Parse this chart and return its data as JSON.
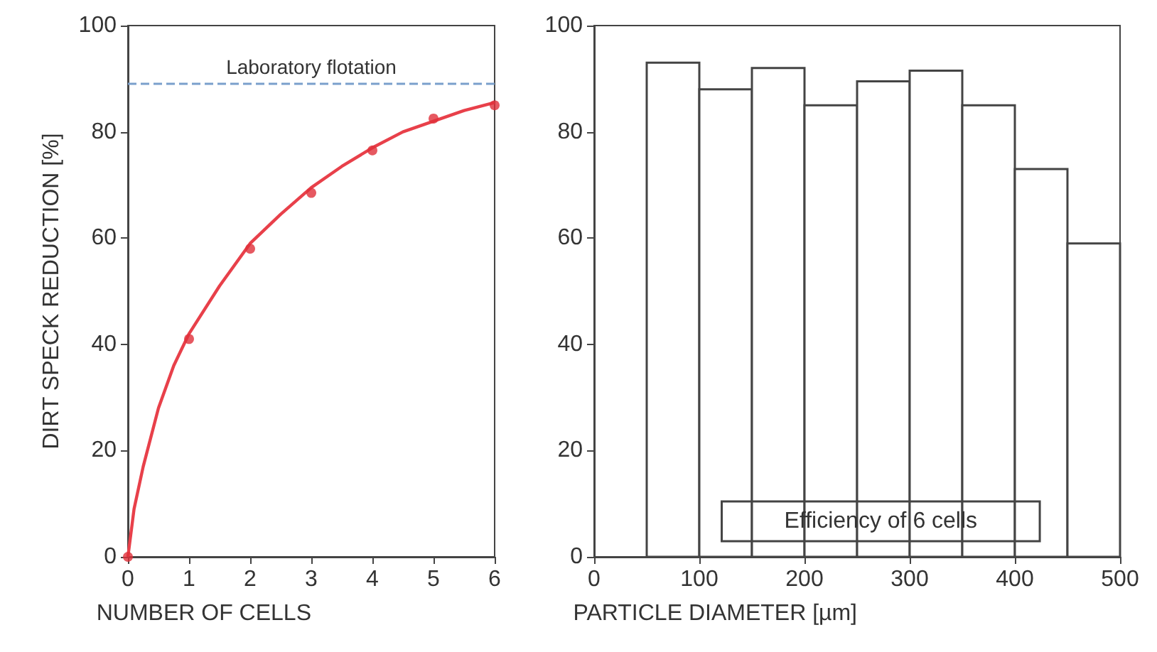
{
  "chart_data": [
    {
      "type": "scatter",
      "xlabel": "NUMBER OF CELLS",
      "ylabel": "DIRT SPECK REDUCTION [%]",
      "xlim": [
        0,
        6
      ],
      "ylim": [
        0,
        100
      ],
      "xticks": [
        0,
        1,
        2,
        3,
        4,
        5,
        6
      ],
      "yticks": [
        0,
        20,
        40,
        60,
        80,
        100
      ],
      "series": [
        {
          "type": "scatter",
          "color": "#e0303a",
          "marker": "circle",
          "x": [
            0,
            1,
            2,
            3,
            4,
            5,
            6
          ],
          "values": [
            0,
            41,
            58,
            68.5,
            76.5,
            82.5,
            85
          ]
        },
        {
          "type": "line",
          "color": "#e8404a",
          "x": [
            0,
            0.1,
            0.25,
            0.5,
            0.75,
            1,
            1.5,
            2,
            2.5,
            3,
            3.5,
            4,
            4.5,
            5,
            5.5,
            6
          ],
          "values": [
            0,
            9,
            17,
            28,
            36,
            42,
            51,
            59,
            64.5,
            69.5,
            73.5,
            77,
            80,
            82,
            84,
            85.5
          ]
        }
      ],
      "ref_lines": [
        {
          "axis": "y",
          "value": 89,
          "label": "Laboratory flotation",
          "color": "#7aa0cc",
          "line_style": "dashed"
        }
      ]
    },
    {
      "type": "histogram",
      "xlabel": "PARTICLE DIAMETER [µm]",
      "xlim": [
        0,
        500
      ],
      "ylim": [
        0,
        100
      ],
      "xticks": [
        0,
        100,
        200,
        300,
        400,
        500
      ],
      "yticks": [
        0,
        20,
        40,
        60,
        80,
        100
      ],
      "bins": [
        50,
        100,
        150,
        200,
        250,
        300,
        350,
        400,
        450,
        500
      ],
      "values": [
        93,
        88,
        92,
        85,
        89.5,
        91.5,
        85,
        73,
        59
      ],
      "color": "#ffffff",
      "annotations": [
        "Efficiency of 6 cells"
      ]
    }
  ]
}
